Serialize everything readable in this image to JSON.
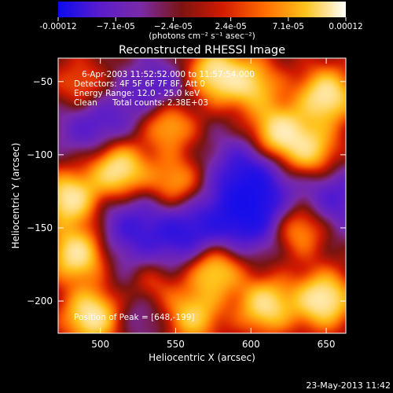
{
  "chart_data": {
    "type": "heatmap",
    "title": "Reconstructed RHESSI Image",
    "xlabel": "Heliocentric X (arcsec)",
    "ylabel": "Heliocentric Y (arcsec)",
    "xlim": [
      472,
      663
    ],
    "ylim": [
      -222,
      -34
    ],
    "x_ticks": [
      500,
      550,
      600,
      650
    ],
    "x_tick_labels": [
      "500",
      "550",
      "600",
      "650"
    ],
    "y_ticks": [
      -50,
      -100,
      -150,
      -200
    ],
    "y_tick_labels": [
      "−50",
      "−100",
      "−150",
      "−200"
    ],
    "colorbar": {
      "range": [
        -0.00012,
        0.00012
      ],
      "tick_labels": [
        "-0.00012",
        "−7.1e-05",
        "−2.4e-05",
        "2.4e-05",
        "7.1e-05",
        "0.00012"
      ],
      "unit_label": "(photons cm⁻² s⁻¹ asec⁻²)",
      "colors": [
        "#0b0bf0",
        "#5a1ccc",
        "#7a2aa8",
        "#7a1410",
        "#d21a00",
        "#ff6a00",
        "#ffc21a",
        "#ffffff"
      ]
    },
    "annotations": {
      "time_range": "6-Apr-2003 11:52:52.000 to 11:57:54.000",
      "detectors": "Detectors: 4F 5F 6F 7F 8F, Att 0",
      "energy_range": "Energy Range: 12.0 - 25.0 keV",
      "clean_label": "Clean",
      "total_counts": "Total counts: 2.38E+03",
      "peak_position": "Position of Peak = [648,-199]"
    },
    "bright_sources": [
      {
        "x": 512,
        "y": -110,
        "level": 1.0
      },
      {
        "x": 495,
        "y": -210,
        "level": 1.0
      },
      {
        "x": 648,
        "y": -199,
        "level": 1.0
      },
      {
        "x": 618,
        "y": -85,
        "level": 0.95
      },
      {
        "x": 650,
        "y": -60,
        "level": 0.95
      },
      {
        "x": 640,
        "y": -98,
        "level": 0.75
      },
      {
        "x": 575,
        "y": -45,
        "level": 0.9
      },
      {
        "x": 600,
        "y": -52,
        "level": 0.7
      },
      {
        "x": 545,
        "y": -78,
        "level": 0.85
      },
      {
        "x": 480,
        "y": -130,
        "level": 0.95
      },
      {
        "x": 485,
        "y": -168,
        "level": 0.95
      },
      {
        "x": 535,
        "y": -190,
        "level": 0.65
      },
      {
        "x": 575,
        "y": -178,
        "level": 0.9
      },
      {
        "x": 560,
        "y": -210,
        "level": 0.8
      },
      {
        "x": 610,
        "y": -203,
        "level": 0.85
      },
      {
        "x": 632,
        "y": -150,
        "level": 0.7
      },
      {
        "x": 550,
        "y": -120,
        "level": 0.6
      },
      {
        "x": 488,
        "y": -55,
        "level": 0.5
      }
    ],
    "dark_regions": [
      {
        "x": 600,
        "y": -140,
        "level": -0.9
      },
      {
        "x": 560,
        "y": -155,
        "level": -0.7
      },
      {
        "x": 520,
        "y": -150,
        "level": -0.55
      },
      {
        "x": 598,
        "y": -110,
        "level": -0.6
      },
      {
        "x": 540,
        "y": -60,
        "level": -0.6
      },
      {
        "x": 495,
        "y": -78,
        "level": -0.55
      },
      {
        "x": 532,
        "y": -200,
        "level": -0.5
      },
      {
        "x": 655,
        "y": -130,
        "level": -0.55
      }
    ]
  },
  "footer": {
    "date": "23-May-2013 11:42"
  }
}
